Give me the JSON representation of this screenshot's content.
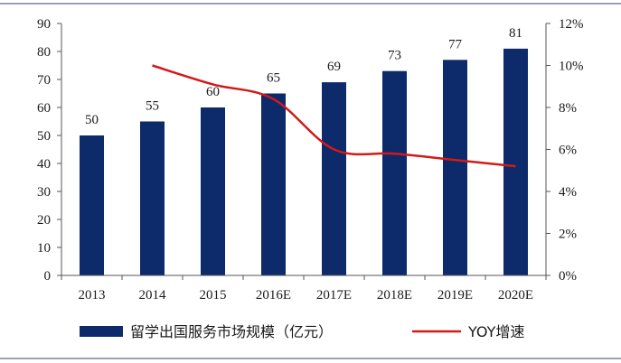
{
  "chart_data": {
    "type": "bar",
    "categories": [
      "2013",
      "2014",
      "2015",
      "2016E",
      "2017E",
      "2018E",
      "2019E",
      "2020E"
    ],
    "series": [
      {
        "name": "留学出国服务市场规模（亿元）",
        "type": "bar",
        "axis": "left",
        "color": "#0d2a6b",
        "values": [
          50,
          55,
          60,
          65,
          69,
          73,
          77,
          81
        ],
        "data_labels": [
          "50",
          "55",
          "60",
          "65",
          "69",
          "73",
          "77",
          "81"
        ]
      },
      {
        "name": "YOY增速",
        "type": "line",
        "axis": "right",
        "color": "#d11a1a",
        "values": [
          null,
          10.0,
          9.1,
          8.4,
          6.0,
          5.8,
          5.5,
          5.2
        ]
      }
    ],
    "y_left": {
      "ylim": [
        0,
        90
      ],
      "ticks": [
        0,
        10,
        20,
        30,
        40,
        50,
        60,
        70,
        80,
        90
      ],
      "tick_labels": [
        "0",
        "10",
        "20",
        "30",
        "40",
        "50",
        "60",
        "70",
        "80",
        "90"
      ]
    },
    "y_right": {
      "ylim": [
        0,
        12
      ],
      "ticks": [
        0,
        2,
        4,
        6,
        8,
        10,
        12
      ],
      "tick_labels": [
        "0%",
        "2%",
        "4%",
        "6%",
        "8%",
        "10%",
        "12%"
      ]
    },
    "grid": false,
    "legend_position": "bottom",
    "title": "",
    "xlabel": "",
    "ylabel": ""
  }
}
